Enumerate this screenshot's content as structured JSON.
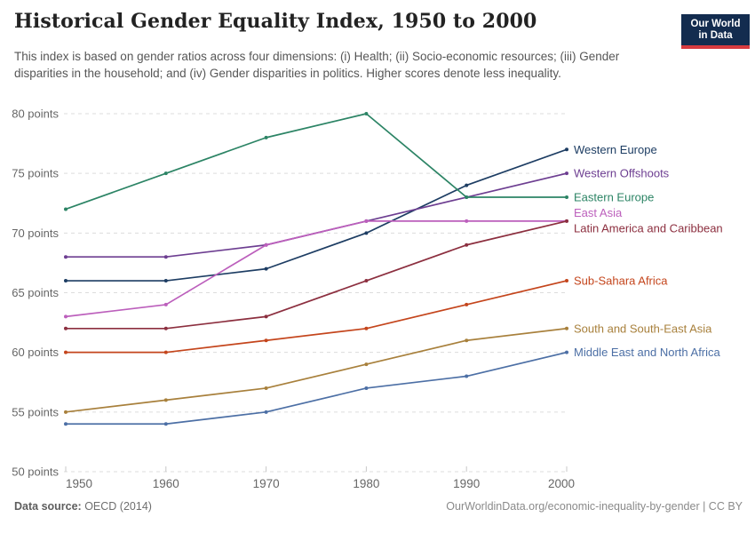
{
  "header": {
    "title": "Historical Gender Equality Index, 1950 to 2000",
    "subtitle": "This index is based on gender ratios across four dimensions: (i) Health; (ii) Socio-economic resources; (iii) Gender disparities in the household; and (iv) Gender disparities in politics. Higher scores denote less inequality.",
    "logo": {
      "line1": "Our World",
      "line2": "in Data",
      "bg_color": "#132c4f",
      "bar_color": "#d73a3f"
    }
  },
  "chart_data": {
    "type": "line",
    "title": "Historical Gender Equality Index, 1950 to 2000",
    "x": [
      1950,
      1960,
      1970,
      1980,
      1990,
      2000
    ],
    "xtick_labels": [
      "1950",
      "1960",
      "1970",
      "1980",
      "1990",
      "2000"
    ],
    "ylim": [
      50,
      80
    ],
    "yticks": [
      80,
      75,
      70,
      65,
      60,
      55,
      50
    ],
    "ytick_labels": [
      "80 points",
      "75 points",
      "70 points",
      "65 points",
      "60 points",
      "55 points",
      "50 points"
    ],
    "unit": "points",
    "grid": "horizontal-dashed",
    "legend_position": "labels-at-line-ends-right",
    "axis_text_color": "#666666",
    "grid_color": "#dcdcdc",
    "series": [
      {
        "name": "Western Europe",
        "color": "#1d3d63",
        "values": [
          66,
          66,
          67,
          70,
          74,
          77
        ],
        "label_at": 77.0
      },
      {
        "name": "Western Offshoots",
        "color": "#6d3e91",
        "values": [
          68,
          68,
          69,
          71,
          73,
          75
        ],
        "label_at": 75.0
      },
      {
        "name": "Eastern Europe",
        "color": "#2c8465",
        "values": [
          72,
          75,
          78,
          80,
          73,
          73
        ],
        "label_at": 73.0
      },
      {
        "name": "East Asia",
        "color": "#bc5fbc",
        "values": [
          63,
          64,
          69,
          71,
          71,
          71
        ],
        "label_at": 71.7
      },
      {
        "name": "Latin America and Caribbean",
        "color": "#8c2f3f",
        "values": [
          62,
          62,
          63,
          66,
          69,
          71
        ],
        "label_at": 70.4
      },
      {
        "name": "Sub-Sahara Africa",
        "color": "#c4451c",
        "values": [
          60,
          60,
          61,
          62,
          64,
          66
        ],
        "label_at": 66.0
      },
      {
        "name": "South and South-East Asia",
        "color": "#a8803c",
        "values": [
          55,
          56,
          57,
          59,
          61,
          62
        ],
        "label_at": 62.0
      },
      {
        "name": "Middle East and North Africa",
        "color": "#4c6fa5",
        "values": [
          54,
          54,
          55,
          57,
          58,
          60
        ],
        "label_at": 60.0
      }
    ]
  },
  "footer": {
    "source_label": "Data source:",
    "source_value": " OECD (2014)",
    "link": "OurWorldinData.org/economic-inequality-by-gender | CC BY"
  }
}
